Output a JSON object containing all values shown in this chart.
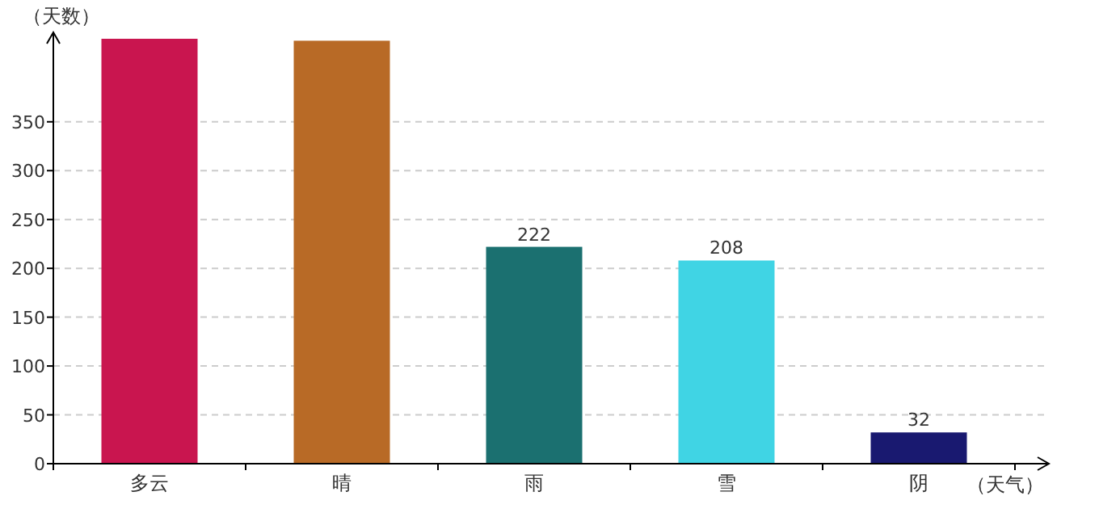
{
  "chart_data": {
    "type": "bar",
    "xlabel": "（天气）",
    "ylabel": "（天数）",
    "categories": [
      "多云",
      "晴",
      "雨",
      "雪",
      "阴"
    ],
    "values": [
      435,
      433,
      222,
      208,
      32
    ],
    "colors": [
      "#c9154f",
      "#b86a26",
      "#1b7070",
      "#40d4e4",
      "#191970"
    ],
    "value_labels": [
      null,
      null,
      "222",
      "208",
      "32"
    ],
    "ylim": [
      0,
      435
    ],
    "yticks": [
      0,
      50,
      100,
      150,
      200,
      250,
      300,
      350
    ],
    "grid": "y"
  }
}
